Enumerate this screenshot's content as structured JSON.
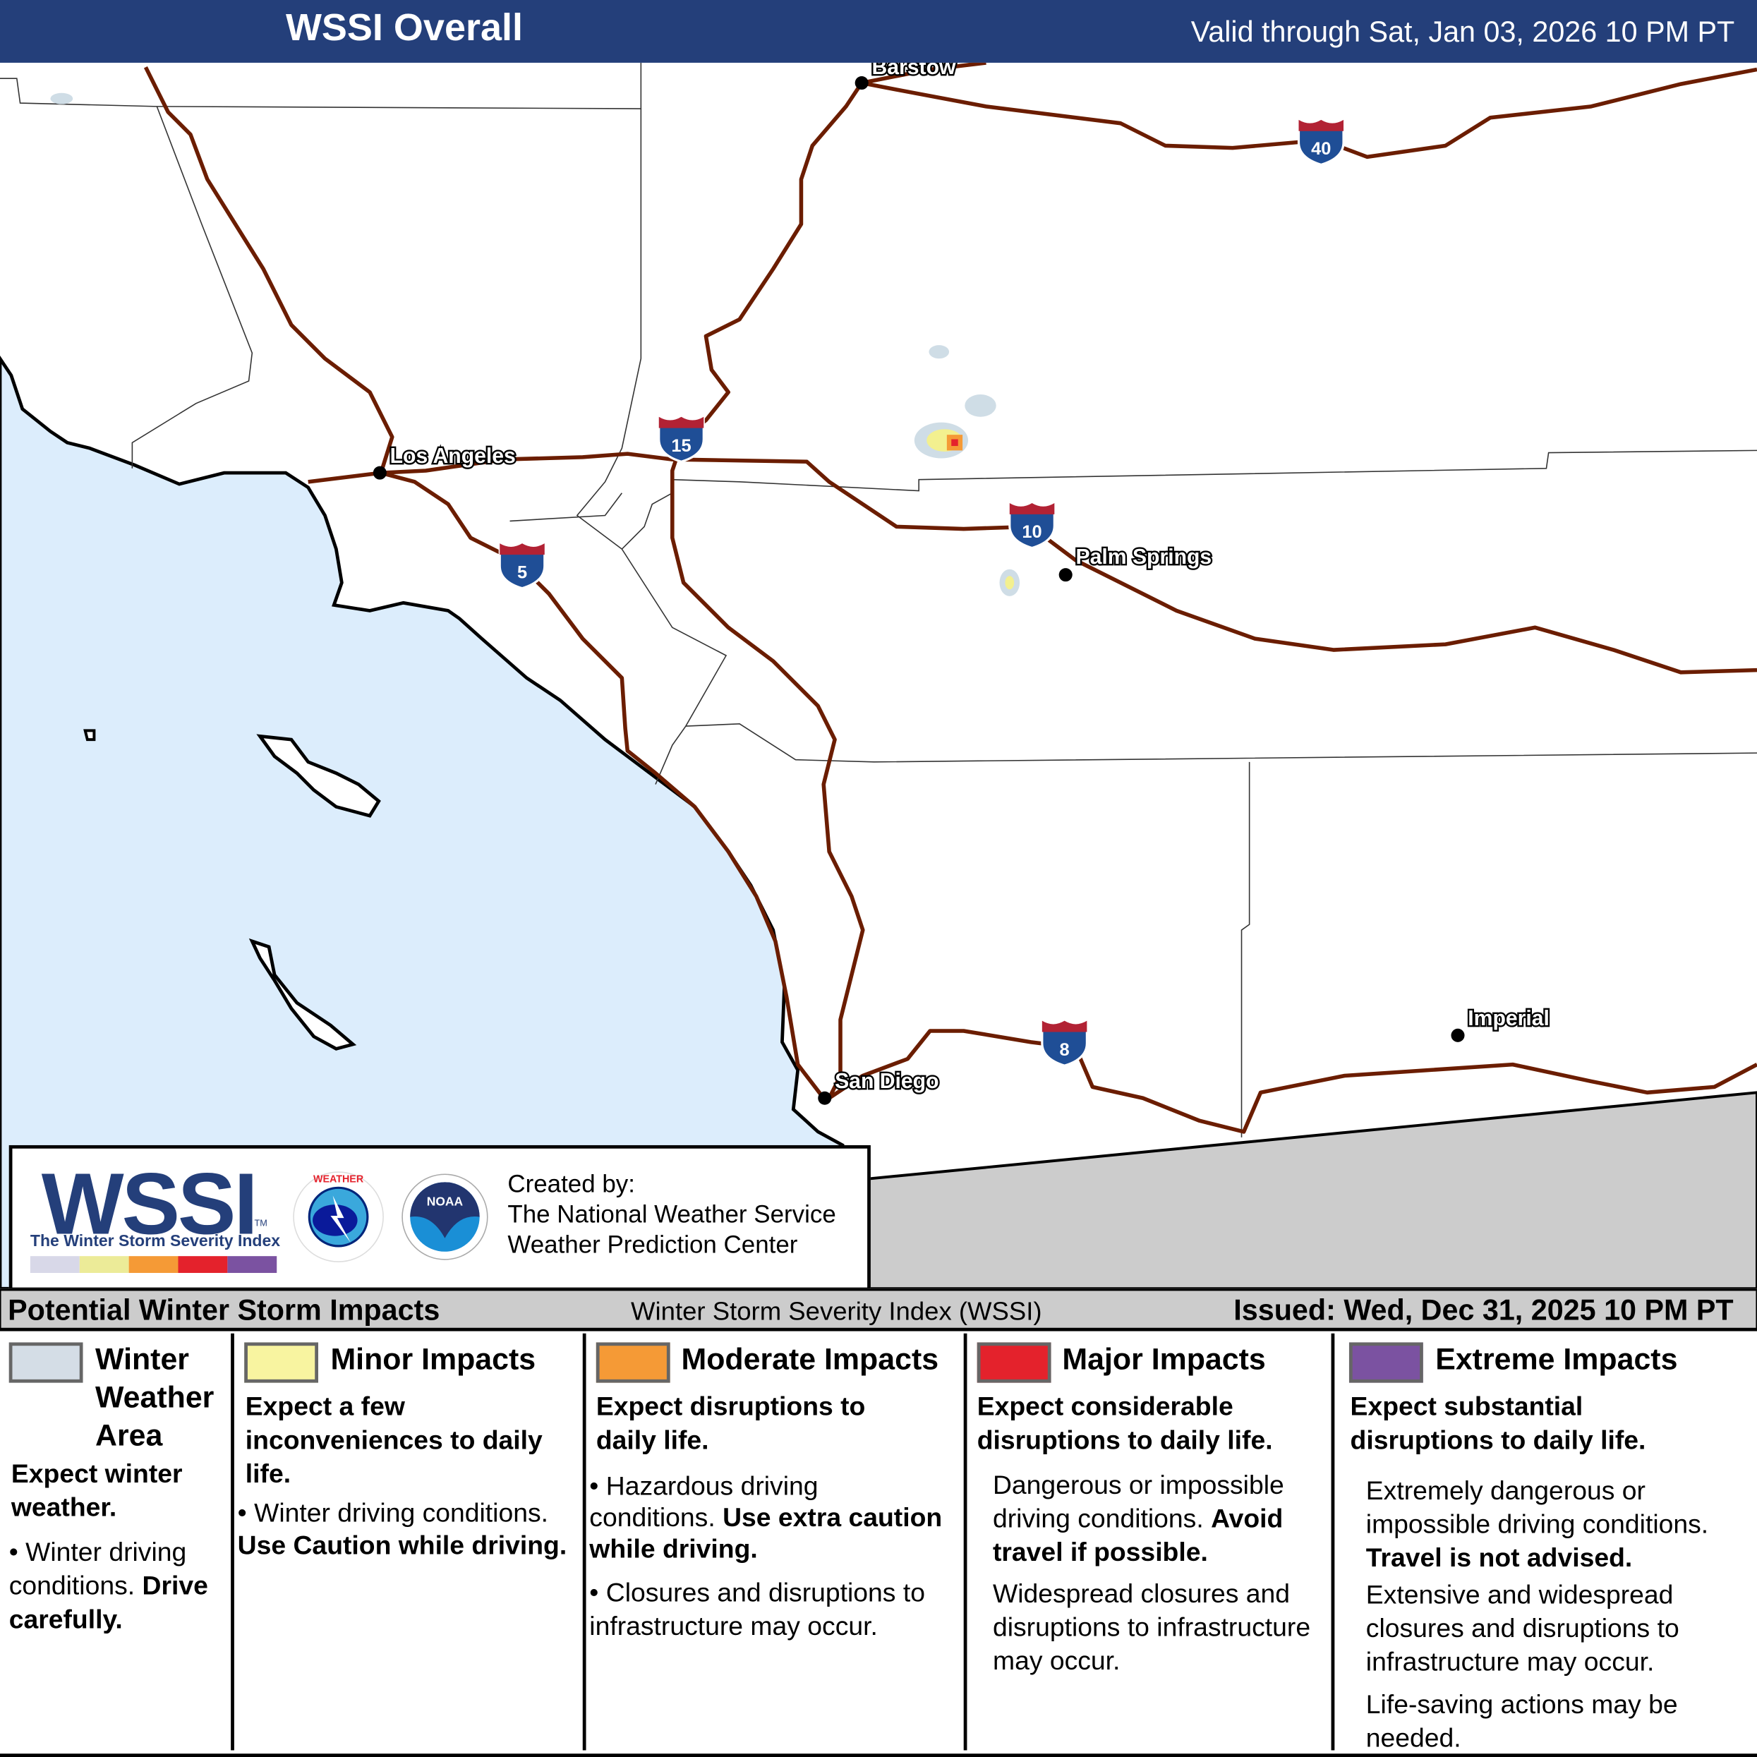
{
  "header": {
    "title": "WSSI Overall",
    "valid": "Valid through Sat, Jan 03, 2026 10 PM PT"
  },
  "map": {
    "colors": {
      "ocean": "#dcedfc",
      "land": "#ffffff",
      "mexico": "#cccccc",
      "interstate": "#6b1d00",
      "winter_weather_area": "#cfdde6",
      "minor": "#f3f08f",
      "moderate": "#f59a36",
      "major": "#e4222c"
    },
    "cities": [
      {
        "name": "Barstow"
      },
      {
        "name": "Los Angeles"
      },
      {
        "name": "Palm Springs"
      },
      {
        "name": "San Diego"
      },
      {
        "name": "Imperial"
      }
    ],
    "interstates": [
      "40",
      "15",
      "10",
      "5",
      "8"
    ]
  },
  "logo": {
    "wssi": "WSSI",
    "tm": "TM",
    "subtitle": "The Winter Storm Severity Index",
    "nws_text": "NATIONAL WEATHER SERVICE",
    "noaa_text": "NOAA",
    "created_by": "Created by:",
    "org1": "The National Weather Service",
    "org2": "Weather Prediction Center"
  },
  "strip": {
    "left": "Potential Winter Storm Impacts",
    "middle": "Winter Storm Severity Index (WSSI)",
    "right": "Issued: Wed, Dec 31, 2025 10 PM PT"
  },
  "legend": [
    {
      "color": "#d4dde6",
      "name": "Winter Weather Area",
      "lead": "Expect winter weather.",
      "b1": "Winter driving conditions.",
      "b1_bold": "Drive carefully."
    },
    {
      "color": "#f8f4a0",
      "name": "Minor Impacts",
      "lead": "Expect a few inconveniences to daily life.",
      "b1": "Winter driving conditions.",
      "b1_bold": "Use Caution while driving."
    },
    {
      "color": "#f59a36",
      "name": "Moderate Impacts",
      "lead": "Expect disruptions to daily life.",
      "b1": "Hazardous driving conditions.",
      "b1_bold": "Use extra caution while driving.",
      "b2": "Closures and disruptions to infrastructure may occur."
    },
    {
      "color": "#e4222c",
      "name": "Major Impacts",
      "lead": "Expect considerable disruptions to daily life.",
      "b1": "Dangerous or impossible driving conditions.",
      "b1_bold": "Avoid travel if possible.",
      "b2": "Widespread closures and disruptions to infrastructure may occur."
    },
    {
      "color": "#7b52a1",
      "name": "Extreme Impacts",
      "lead": "Expect substantial disruptions to daily life.",
      "b1": "Extremely dangerous or impossible driving conditions.",
      "b1_bold": "Travel is not advised.",
      "b2": "Extensive and widespread closures and disruptions to infrastructure may occur.",
      "b3": "Life-saving actions may be needed."
    }
  ],
  "wssi_bar": [
    "#d8d8e8",
    "#eceb98",
    "#f59a36",
    "#e4222c",
    "#7b52a1"
  ]
}
